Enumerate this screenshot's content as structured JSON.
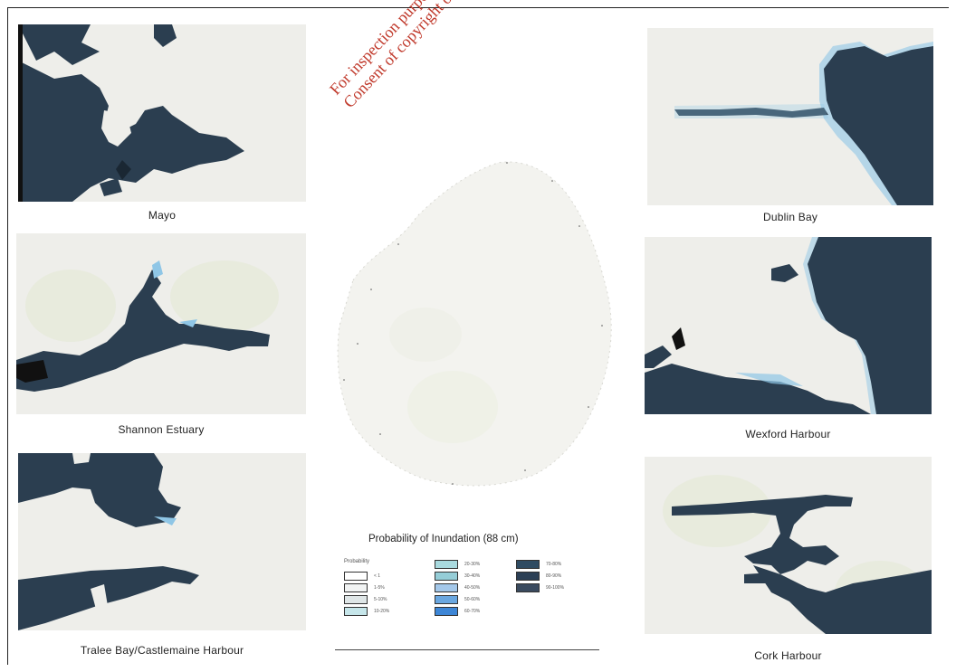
{
  "watermark": {
    "line1": "For inspection purposes only.",
    "line2": "Consent of copyright owner required for any other use."
  },
  "panels": {
    "mayo": "Mayo",
    "shannon": "Shannon Estuary",
    "tralee": "Tralee Bay/Castlemaine Harbour",
    "dublin": "Dublin Bay",
    "wexford": "Wexford Harbour",
    "cork": "Cork Harbour"
  },
  "legend": {
    "title": "Probability of Inundation (88 cm)",
    "header": "Probability",
    "entries": [
      {
        "color": "#ffffff",
        "label": "< 1"
      },
      {
        "color": "#f1f3f3",
        "label": "1-5%"
      },
      {
        "color": "#dfe6e7",
        "label": "5-10%"
      },
      {
        "color": "#c6e6ea",
        "label": "10-20%"
      },
      {
        "color": "#a9dadf",
        "label": "20-30%"
      },
      {
        "color": "#95cdd7",
        "label": "30-40%"
      },
      {
        "color": "#a4c8ea",
        "label": "40-50%"
      },
      {
        "color": "#6aa7e0",
        "label": "50-60%"
      },
      {
        "color": "#3d86d6",
        "label": "60-70%"
      },
      {
        "color": "#2f4b62",
        "label": "70-80%"
      },
      {
        "color": "#2b3f55",
        "label": "80-90%"
      },
      {
        "color": "#3a4a5e",
        "label": "90-100%"
      }
    ]
  },
  "colors": {
    "sea": "#2b3e50",
    "land": "#eeeeea",
    "shore": "#8fc6e6"
  }
}
